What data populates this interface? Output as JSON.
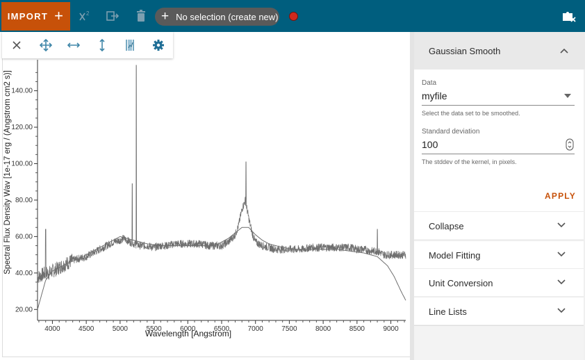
{
  "topbar": {
    "import_label": "IMPORT",
    "import_plus": "+",
    "selection_label": "No selection (create new)",
    "selection_plus": "+",
    "chi2_icon": "chi-square-icon",
    "export_icon": "export-icon",
    "delete_icon": "trash-icon",
    "corner_icon": "puzzle-close-icon",
    "colors": {
      "bar": "#005e7e",
      "import": "#c75109",
      "record": "#d0291e"
    }
  },
  "viewer_toolbar": {
    "icons": [
      "close-icon",
      "pan-zoom-icon",
      "horizontal-zoom-icon",
      "vertical-zoom-icon",
      "select-range-icon",
      "gear-icon"
    ]
  },
  "chart_data": {
    "type": "line",
    "xlabel": "Wavelength [Angstrom]",
    "ylabel": "Spectral Flux Density Wav [1e-17 erg / (Angstrom cm2 s)]",
    "xlim": [
      3780,
      9220
    ],
    "ylim": [
      14,
      157
    ],
    "xticks": [
      {
        "value": 4000,
        "label": "4000"
      },
      {
        "value": 4500,
        "label": "4500"
      },
      {
        "value": 5000,
        "label": "5000"
      },
      {
        "value": 5500,
        "label": "5500"
      },
      {
        "value": 6000,
        "label": "6000"
      },
      {
        "value": 6500,
        "label": "6500"
      },
      {
        "value": 7000,
        "label": "7000"
      },
      {
        "value": 7500,
        "label": "7500"
      },
      {
        "value": 8000,
        "label": "8000"
      },
      {
        "value": 8500,
        "label": "8500"
      },
      {
        "value": 9000,
        "label": "9000"
      }
    ],
    "yticks": [
      {
        "value": 20,
        "label": "20.00"
      },
      {
        "value": 40,
        "label": "40.00"
      },
      {
        "value": 60,
        "label": "60.00"
      },
      {
        "value": 80,
        "label": "80.00"
      },
      {
        "value": 100,
        "label": "100.00"
      },
      {
        "value": 120,
        "label": "120.00"
      },
      {
        "value": 140,
        "label": "140.00"
      }
    ],
    "series": [
      {
        "role": "spectrum",
        "x": [
          3800,
          3850,
          3900,
          3950,
          4000,
          4100,
          4200,
          4300,
          4400,
          4500,
          4600,
          4700,
          4800,
          4900,
          5000,
          5050,
          5100,
          5150,
          5200,
          5300,
          5400,
          5500,
          5600,
          5700,
          5800,
          5900,
          6000,
          6100,
          6200,
          6300,
          6400,
          6500,
          6600,
          6700,
          6750,
          6800,
          6850,
          6900,
          6950,
          7000,
          7100,
          7200,
          7300,
          7400,
          7500,
          7600,
          7700,
          7800,
          7900,
          8000,
          8100,
          8200,
          8300,
          8400,
          8500,
          8600,
          8700,
          8800,
          8900,
          9000,
          9100,
          9200
        ],
        "y": [
          38,
          39,
          40,
          40,
          41,
          43,
          45,
          47,
          48,
          49,
          51,
          53,
          55,
          57,
          58,
          59,
          58,
          57,
          56,
          55,
          55,
          54,
          55,
          55,
          56,
          56,
          56,
          56,
          56,
          55,
          55,
          55,
          57,
          61,
          66,
          75,
          80,
          70,
          62,
          57,
          55,
          54,
          53,
          53,
          53,
          53,
          53,
          54,
          54,
          54,
          54,
          54,
          54,
          54,
          53,
          53,
          52,
          52,
          50,
          50,
          50,
          50
        ],
        "color": "#6f6f6f"
      },
      {
        "role": "smoothed",
        "x": [
          3780,
          3900,
          4000,
          4200,
          4400,
          4600,
          4800,
          5000,
          5200,
          5400,
          5600,
          5800,
          6000,
          6200,
          6400,
          6600,
          6700,
          6800,
          6900,
          7000,
          7100,
          7200,
          7400,
          7600,
          7800,
          8000,
          8200,
          8400,
          8600,
          8800,
          8950,
          9050,
          9150,
          9220
        ],
        "y": [
          20,
          36,
          41,
          45,
          48,
          52,
          56,
          60,
          58,
          56,
          55,
          55,
          55,
          55,
          55,
          59,
          62,
          65,
          65,
          61,
          58,
          56,
          54,
          53,
          53,
          53,
          53,
          52,
          51,
          49,
          44,
          38,
          30,
          25
        ],
        "color": "#6f6f6f"
      }
    ],
    "peaks": [
      {
        "x": 3900,
        "y": 64
      },
      {
        "x": 5180,
        "y": 89
      },
      {
        "x": 5240,
        "y": 154
      },
      {
        "x": 6860,
        "y": 101
      },
      {
        "x": 8800,
        "y": 64
      }
    ]
  },
  "panel": {
    "gaussian": {
      "title": "Gaussian Smooth",
      "data_label": "Data",
      "data_value": "myfile",
      "data_hint": "Select the data set to be smoothed.",
      "std_label": "Standard deviation",
      "std_value": "100",
      "std_hint": "The stddev of the kernel, in pixels.",
      "apply_label": "APPLY"
    },
    "collapse": "Collapse",
    "model_fitting": "Model Fitting",
    "unit_conversion": "Unit Conversion",
    "line_lists": "Line Lists"
  }
}
